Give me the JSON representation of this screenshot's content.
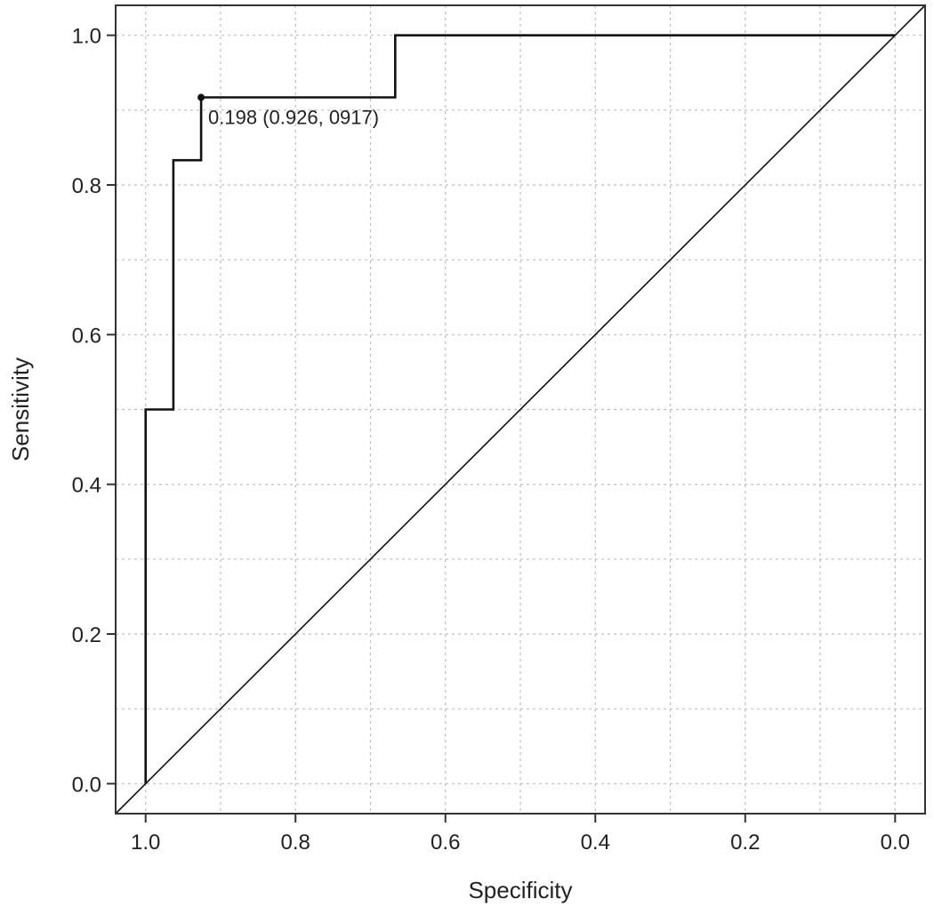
{
  "chart_data": {
    "type": "line",
    "title": "",
    "xlabel": "Specificity",
    "ylabel": "Sensitivity",
    "xlim": [
      1.04,
      -0.04
    ],
    "ylim": [
      -0.04,
      1.04
    ],
    "x_reversed": true,
    "xticks": [
      1.0,
      0.8,
      0.6,
      0.4,
      0.2,
      0.0
    ],
    "xtick_labels": [
      "1.0",
      "0.8",
      "0.6",
      "0.4",
      "0.2",
      "0.0"
    ],
    "yticks": [
      0.0,
      0.2,
      0.4,
      0.6,
      0.8,
      1.0
    ],
    "ytick_labels": [
      "0.0",
      "0.2",
      "0.4",
      "0.6",
      "0.8",
      "1.0"
    ],
    "grid": true,
    "series": [
      {
        "specificity": [
          1.0,
          1.0,
          0.963,
          0.963,
          0.926,
          0.926,
          0.667,
          0.667,
          0.0
        ],
        "sensitivity": [
          0.0,
          0.5,
          0.5,
          0.833,
          0.833,
          0.917,
          0.917,
          1.0,
          1.0
        ],
        "color": "#111111"
      },
      {
        "specificity": [
          1.0,
          0.0
        ],
        "sensitivity": [
          0.0,
          1.0
        ],
        "color": "#111111"
      }
    ],
    "annotations": [
      {
        "x": 0.926,
        "y": 0.917,
        "text": "0.198 (0.926, 0917)"
      }
    ]
  }
}
